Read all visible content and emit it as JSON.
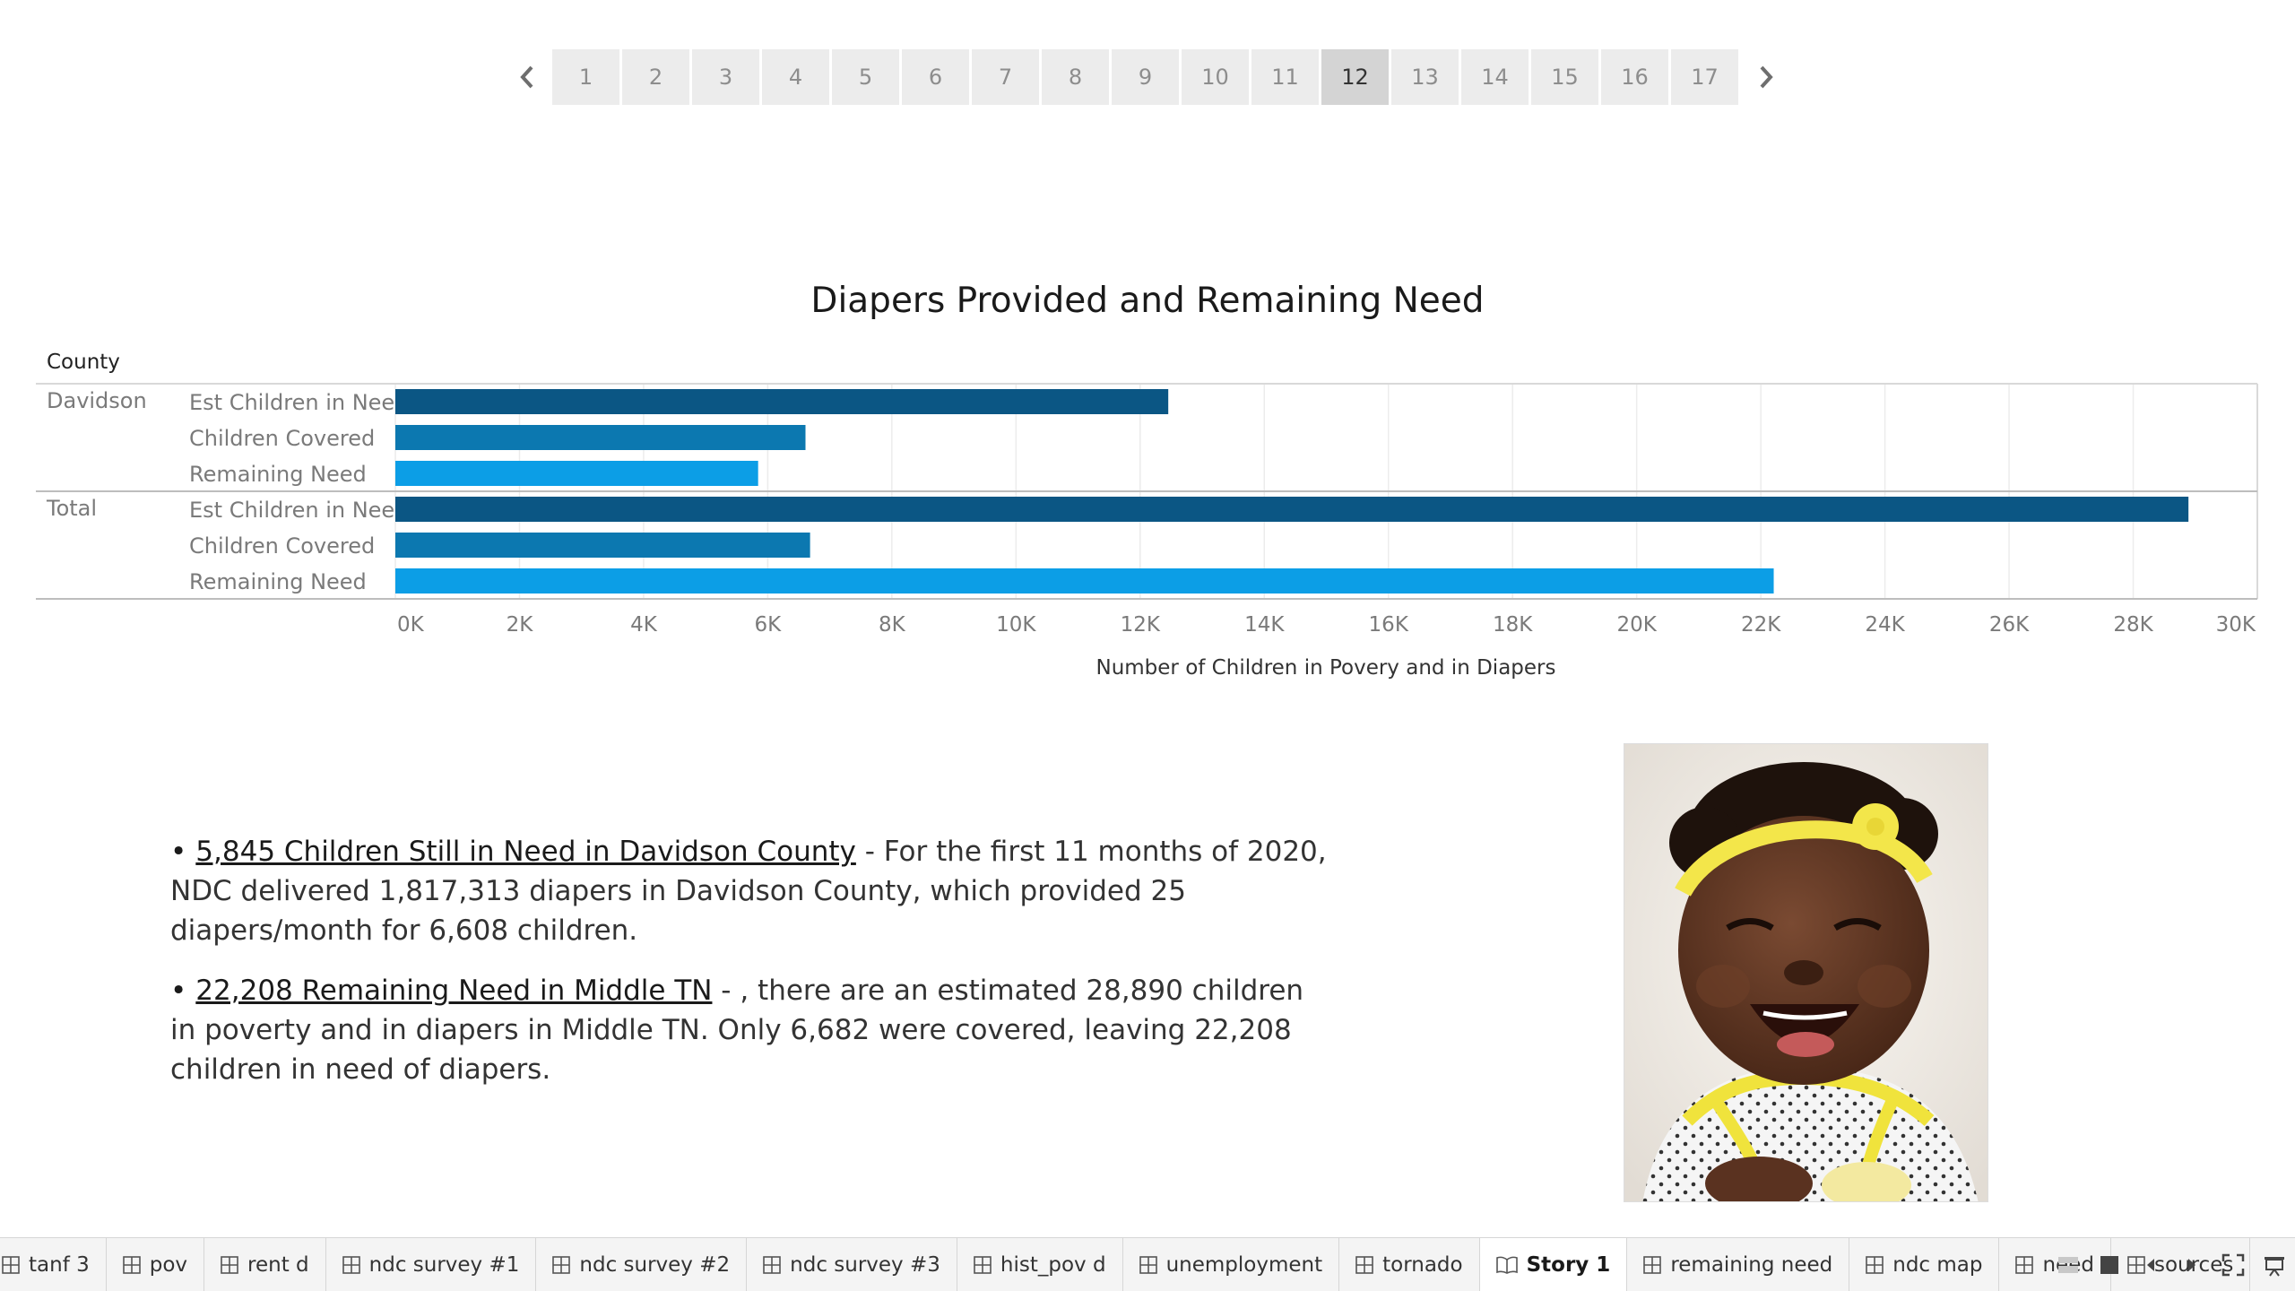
{
  "story_nav": {
    "pages": [
      "1",
      "2",
      "3",
      "4",
      "5",
      "6",
      "7",
      "8",
      "9",
      "10",
      "11",
      "12",
      "13",
      "14",
      "15",
      "16",
      "17"
    ],
    "active": "12"
  },
  "chart_data": {
    "type": "bar",
    "orientation": "horizontal",
    "title": "Diapers Provided and Remaining Need",
    "row_header": "County",
    "xlabel": "Number of Children in Povery and in Diapers",
    "xlim": [
      0,
      30000
    ],
    "ticks": [
      0,
      2000,
      4000,
      6000,
      8000,
      10000,
      12000,
      14000,
      16000,
      18000,
      20000,
      22000,
      24000,
      26000,
      28000,
      30000
    ],
    "tick_labels": [
      "0K",
      "2K",
      "4K",
      "6K",
      "8K",
      "10K",
      "12K",
      "14K",
      "16K",
      "18K",
      "20K",
      "22K",
      "24K",
      "26K",
      "28K",
      "30K"
    ],
    "grid": true,
    "colors": {
      "Est Children in Need": "#0b5684",
      "Children Covered": "#0c78b0",
      "Remaining Need": "#0c9ee6"
    },
    "groups": [
      {
        "name": "Davidson",
        "bars": [
          {
            "label": "Est Children in Need",
            "value": 12453
          },
          {
            "label": "Children Covered",
            "value": 6608
          },
          {
            "label": "Remaining Need",
            "value": 5845
          }
        ]
      },
      {
        "name": "Total",
        "bars": [
          {
            "label": "Est Children in Need",
            "value": 28890
          },
          {
            "label": "Children Covered",
            "value": 6682
          },
          {
            "label": "Remaining Need",
            "value": 22208
          }
        ]
      }
    ]
  },
  "notes": {
    "bullet1": {
      "heading": "5,845 Children Still in Need in Davidson County",
      "body": " - For the first 11 months of 2020, NDC delivered 1,817,313 diapers in Davidson County, which provided 25 diapers/month for 6,608 children."
    },
    "bullet2": {
      "heading": "22,208 Remaining Need in Middle TN",
      "body": " - , there are an estimated 28,890 children in poverty and in diapers in Middle TN. Only 6,682 were covered, leaving 22,208 children in need of diapers."
    }
  },
  "tabs": [
    {
      "label": "tanf 3",
      "icon": "grid-icon"
    },
    {
      "label": "pov",
      "icon": "grid-icon"
    },
    {
      "label": "rent d",
      "icon": "grid-icon"
    },
    {
      "label": "ndc survey #1",
      "icon": "grid-icon"
    },
    {
      "label": "ndc survey #2",
      "icon": "grid-icon"
    },
    {
      "label": "ndc survey #3",
      "icon": "grid-icon"
    },
    {
      "label": "hist_pov d",
      "icon": "grid-icon"
    },
    {
      "label": "unemployment",
      "icon": "grid-icon"
    },
    {
      "label": "tornado",
      "icon": "grid-icon"
    },
    {
      "label": "Story 1",
      "icon": "book-icon",
      "active": true
    },
    {
      "label": "remaining need",
      "icon": "grid-icon"
    },
    {
      "label": "ndc map",
      "icon": "grid-icon"
    },
    {
      "label": "need",
      "icon": "grid-icon"
    },
    {
      "label": "sources",
      "icon": "grid-icon"
    }
  ]
}
